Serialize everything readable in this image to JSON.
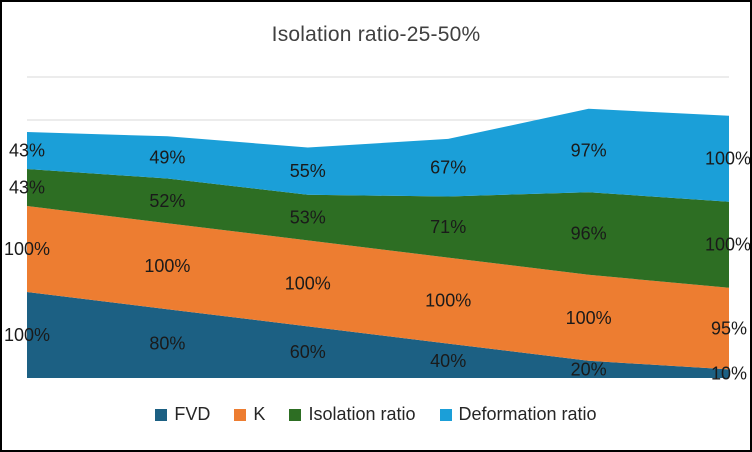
{
  "window": {
    "background": "#FFFFFF",
    "border_color": "#000000"
  },
  "chart_data": {
    "type": "area",
    "stacked": true,
    "title": "Isolation ratio-25-50%",
    "points": 6,
    "x_axis_labels_visible": false,
    "y_axis_labels_visible": false,
    "ylim": [
      0,
      350
    ],
    "gridline_values": [
      300,
      350
    ],
    "gridline_color": "#D9D9D9",
    "legend_position": "bottom",
    "value_suffix": "%",
    "label_color": "#1A1A1A",
    "title_color": "#404040",
    "series": [
      {
        "name": "FVD",
        "color": "#1C6083",
        "values": [
          100,
          80,
          60,
          40,
          20,
          10
        ],
        "labels": [
          "100%",
          "80%",
          "60%",
          "40%",
          "20%",
          "10%"
        ]
      },
      {
        "name": "K",
        "color": "#ED7D31",
        "values": [
          100,
          100,
          100,
          100,
          100,
          95
        ],
        "labels": [
          "100%",
          "100%",
          "100%",
          "100%",
          "100%",
          "95%"
        ]
      },
      {
        "name": "Isolation ratio",
        "color": "#2D6E23",
        "values": [
          43,
          52,
          53,
          71,
          96,
          100
        ],
        "labels": [
          "43%",
          "52%",
          "53%",
          "71%",
          "96%",
          "100%"
        ]
      },
      {
        "name": "Deformation ratio",
        "color": "#1B9FD8",
        "values": [
          43,
          49,
          55,
          67,
          97,
          100
        ],
        "labels": [
          "43%",
          "49%",
          "55%",
          "67%",
          "97%",
          "100%"
        ]
      }
    ]
  },
  "legend": {
    "items": [
      "FVD",
      "K",
      "Isolation ratio",
      "Deformation ratio"
    ]
  }
}
